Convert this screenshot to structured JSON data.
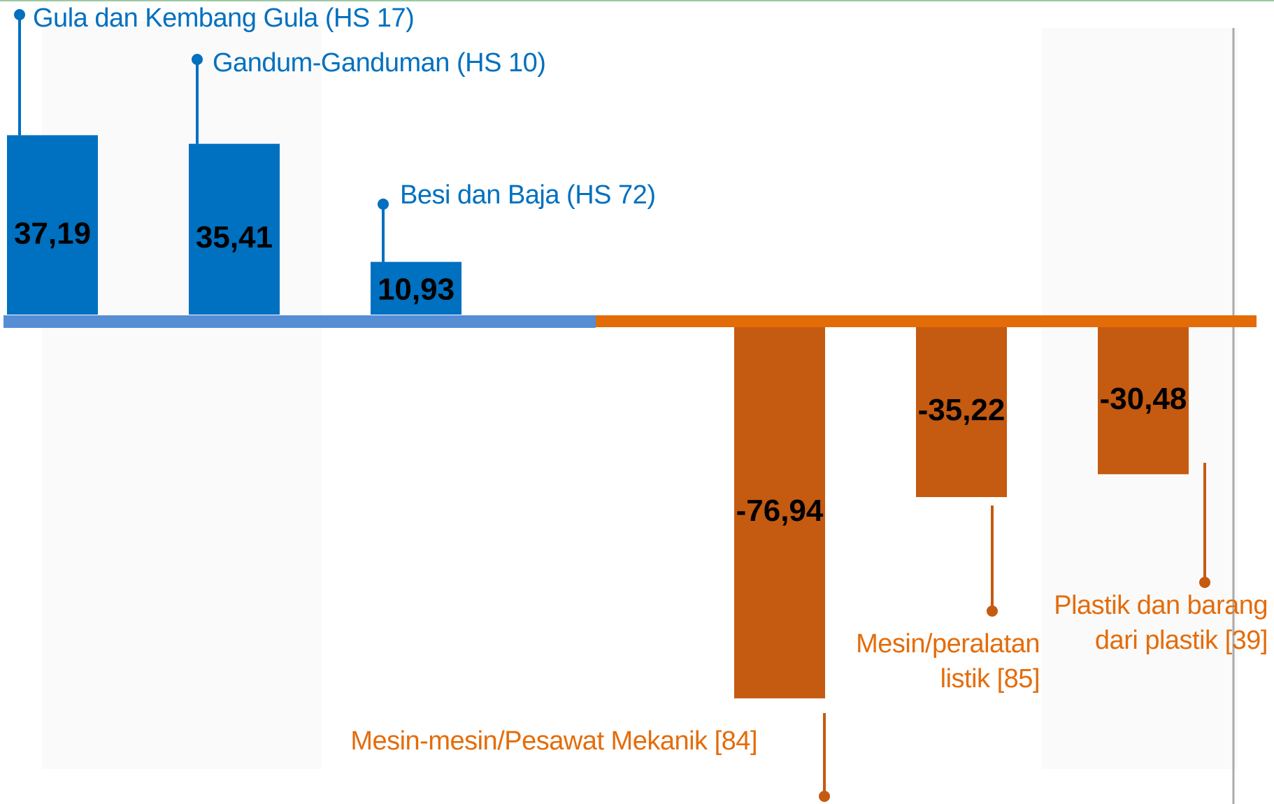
{
  "chart_data": {
    "type": "bar",
    "categories": [
      "Gula dan Kembang Gula  (HS 17)",
      "Gandum-Ganduman  (HS 10)",
      "Besi dan Baja (HS 72)",
      "Mesin-mesin/Pesawat Mekanik [84]",
      "Mesin/peralatan listik [85]",
      "Plastik dan barang dari plastik [39]"
    ],
    "values": [
      37.19,
      35.41,
      10.93,
      -76.94,
      -35.22,
      -30.48
    ],
    "value_labels": [
      "37,19",
      "35,41",
      "10,93",
      "-76,94",
      "-35,22",
      "-30,48"
    ],
    "colors": [
      "#0070c0",
      "#0070c0",
      "#0070c0",
      "#c55a11",
      "#c55a11",
      "#c55a11"
    ],
    "label_colors": [
      "#0070c0",
      "#0070c0",
      "#0070c0",
      "#e46c0a",
      "#e46c0a",
      "#e46c0a"
    ]
  }
}
